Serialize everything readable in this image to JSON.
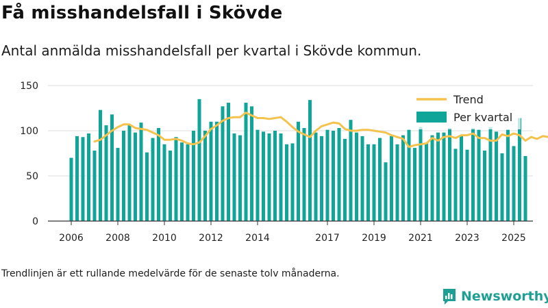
{
  "title": "Få misshandelsfall i Skövde",
  "subtitle": "Antal anmälda misshandelsfall per kvartal i Skövde kommun.",
  "footnote": "Trendlinjen är ett rullande medelvärde för de senaste tolv månaderna.",
  "brand": {
    "name": "Newsworthy",
    "logo_icon": "newsworthy-logo-icon"
  },
  "chart_data": {
    "type": "bar",
    "x_start": "2006 Q1",
    "ylim": [
      0,
      150
    ],
    "yticks": [
      0,
      50,
      100,
      150
    ],
    "xticks": [
      "2006",
      "2008",
      "2010",
      "2012",
      "2014",
      "2017",
      "2019",
      "2021",
      "2023",
      "2025"
    ],
    "grid": true,
    "legend_position": "top-right",
    "colors": {
      "bars": "#0fa598",
      "trend": "#f5c24e",
      "grid": "#dddddd",
      "axis": "#333333"
    },
    "series": [
      {
        "name": "Per kvartal",
        "type": "bar",
        "values": [
          70,
          94,
          93,
          97,
          78,
          123,
          106,
          118,
          81,
          100,
          107,
          98,
          109,
          76,
          92,
          103,
          85,
          78,
          93,
          87,
          85,
          100,
          135,
          100,
          110,
          110,
          127,
          131,
          97,
          95,
          131,
          127,
          101,
          99,
          97,
          100,
          97,
          85,
          86,
          110,
          103,
          134,
          98,
          94,
          101,
          100,
          103,
          91,
          112,
          98,
          94,
          85,
          85,
          92,
          65,
          94,
          85,
          95,
          101,
          81,
          104,
          86,
          95,
          98,
          98,
          103,
          80,
          94,
          79,
          103,
          101,
          78,
          104,
          99,
          75,
          101,
          83,
          114,
          72
        ]
      },
      {
        "name": "Trend",
        "type": "line",
        "x_offset": 4,
        "values": [
          88,
          90,
          95,
          100,
          104,
          107,
          107,
          103,
          102,
          101,
          98,
          95,
          90,
          90,
          91,
          89,
          86,
          85,
          87,
          94,
          102,
          106,
          111,
          114,
          115,
          115,
          120,
          117,
          114,
          114,
          113,
          114,
          115,
          110,
          104,
          99,
          96,
          93,
          100,
          105,
          107,
          109,
          108,
          102,
          100,
          100,
          101,
          101,
          100,
          99,
          98,
          95,
          93,
          91,
          82,
          84,
          85,
          86,
          92,
          89,
          93,
          94,
          92,
          95,
          95,
          97,
          92,
          92,
          89,
          89,
          96,
          94,
          97,
          95,
          89,
          93,
          91,
          94,
          93
        ]
      }
    ]
  }
}
